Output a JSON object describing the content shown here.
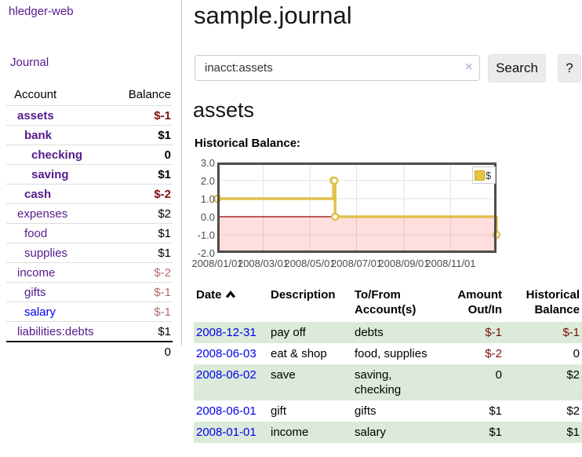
{
  "app": {
    "brand": "hledger-web",
    "nav_journal": "Journal"
  },
  "header": {
    "title": "sample.journal"
  },
  "search": {
    "value": "inacct:assets",
    "clear_icon": "×",
    "button_label": "Search",
    "help_label": "?"
  },
  "sidebar": {
    "headers": {
      "account": "Account",
      "balance": "Balance"
    },
    "rows": [
      {
        "name": "assets",
        "balance": "$-1",
        "depth": 0,
        "bold": true,
        "bal_style": "neg-strong",
        "link_style": "purple"
      },
      {
        "name": "bank",
        "balance": "$1",
        "depth": 1,
        "bold": true,
        "bal_style": "",
        "link_style": "purple"
      },
      {
        "name": "checking",
        "balance": "0",
        "depth": 2,
        "bold": true,
        "bal_style": "",
        "link_style": "purple"
      },
      {
        "name": "saving",
        "balance": "$1",
        "depth": 2,
        "bold": true,
        "bal_style": "",
        "link_style": "purple"
      },
      {
        "name": "cash",
        "balance": "$-2",
        "depth": 1,
        "bold": true,
        "bal_style": "neg-strong",
        "link_style": "purple"
      },
      {
        "name": "expenses",
        "balance": "$2",
        "depth": 0,
        "bold": false,
        "bal_style": "",
        "link_style": "purple"
      },
      {
        "name": "food",
        "balance": "$1",
        "depth": 1,
        "bold": false,
        "bal_style": "",
        "link_style": "purple"
      },
      {
        "name": "supplies",
        "balance": "$1",
        "depth": 1,
        "bold": false,
        "bal_style": "",
        "link_style": "purple"
      },
      {
        "name": "income",
        "balance": "$-2",
        "depth": 0,
        "bold": false,
        "bal_style": "neg-soft",
        "link_style": "purple"
      },
      {
        "name": "gifts",
        "balance": "$-1",
        "depth": 1,
        "bold": false,
        "bal_style": "neg-soft",
        "link_style": "purple"
      },
      {
        "name": "salary",
        "balance": "$-1",
        "depth": 1,
        "bold": false,
        "bal_style": "neg-soft",
        "link_style": "blue"
      },
      {
        "name": "liabilities:debts",
        "balance": "$1",
        "depth": 0,
        "bold": false,
        "bal_style": "",
        "link_style": "purple"
      }
    ],
    "total": "0"
  },
  "account_page": {
    "heading": "assets",
    "chart_label": "Historical Balance:"
  },
  "chart_data": {
    "type": "line",
    "step": true,
    "title": "Historical Balance:",
    "series": [
      {
        "name": "$",
        "points": [
          [
            "2008-01-01",
            1
          ],
          [
            "2008-06-01",
            2
          ],
          [
            "2008-06-02",
            2
          ],
          [
            "2008-06-03",
            0
          ],
          [
            "2008-12-31",
            -1
          ]
        ]
      }
    ],
    "xlim": [
      "2008-01-01",
      "2008-12-31"
    ],
    "ylim": [
      -2,
      3
    ],
    "y_ticks": [
      "3.0",
      "2.0",
      "1.0",
      "0.0",
      "-1.0",
      "-2.0"
    ],
    "x_ticks": [
      "2008/01/01",
      "2008/03/01",
      "2008/05/01",
      "2008/07/01",
      "2008/09/01",
      "2008/11/01"
    ],
    "legend_position": "top-right",
    "grid": true,
    "line_color": "#e2c04c",
    "marker_fill": "#ffffff",
    "negative_region_color": "rgba(255,0,0,0.13)",
    "zero_line_color": "#8b0000",
    "border_color": "#4d4d4d"
  },
  "register": {
    "headers": {
      "date": "Date",
      "sort_icon": "chevron-up",
      "description": "Description",
      "account_line1": "To/From",
      "account_line2": "Account(s)",
      "amount_line1": "Amount",
      "amount_line2": "Out/In",
      "balance_line1": "Historical",
      "balance_line2": "Balance"
    },
    "rows": [
      {
        "date": "2008-12-31",
        "description": "pay off",
        "accounts": "debts",
        "amount": "$-1",
        "amount_neg": true,
        "balance": "$-1",
        "balance_neg": true
      },
      {
        "date": "2008-06-03",
        "description": "eat & shop",
        "accounts": "food, supplies",
        "amount": "$-2",
        "amount_neg": true,
        "balance": "0",
        "balance_neg": false
      },
      {
        "date": "2008-06-02",
        "description": "save",
        "accounts": "saving, checking",
        "amount": "0",
        "amount_neg": false,
        "balance": "$2",
        "balance_neg": false
      },
      {
        "date": "2008-06-01",
        "description": "gift",
        "accounts": "gifts",
        "amount": "$1",
        "amount_neg": false,
        "balance": "$2",
        "balance_neg": false
      },
      {
        "date": "2008-01-01",
        "description": "income",
        "accounts": "salary",
        "amount": "$1",
        "amount_neg": false,
        "balance": "$1",
        "balance_neg": false
      }
    ]
  },
  "colors": {
    "link_purple": "#551a8b",
    "link_blue": "#0000ee",
    "negative_strong": "#7d0d0d",
    "negative_soft": "#b36b6b",
    "row_stripe_green": "#dcead9",
    "chart_gold": "#e2c04c"
  }
}
